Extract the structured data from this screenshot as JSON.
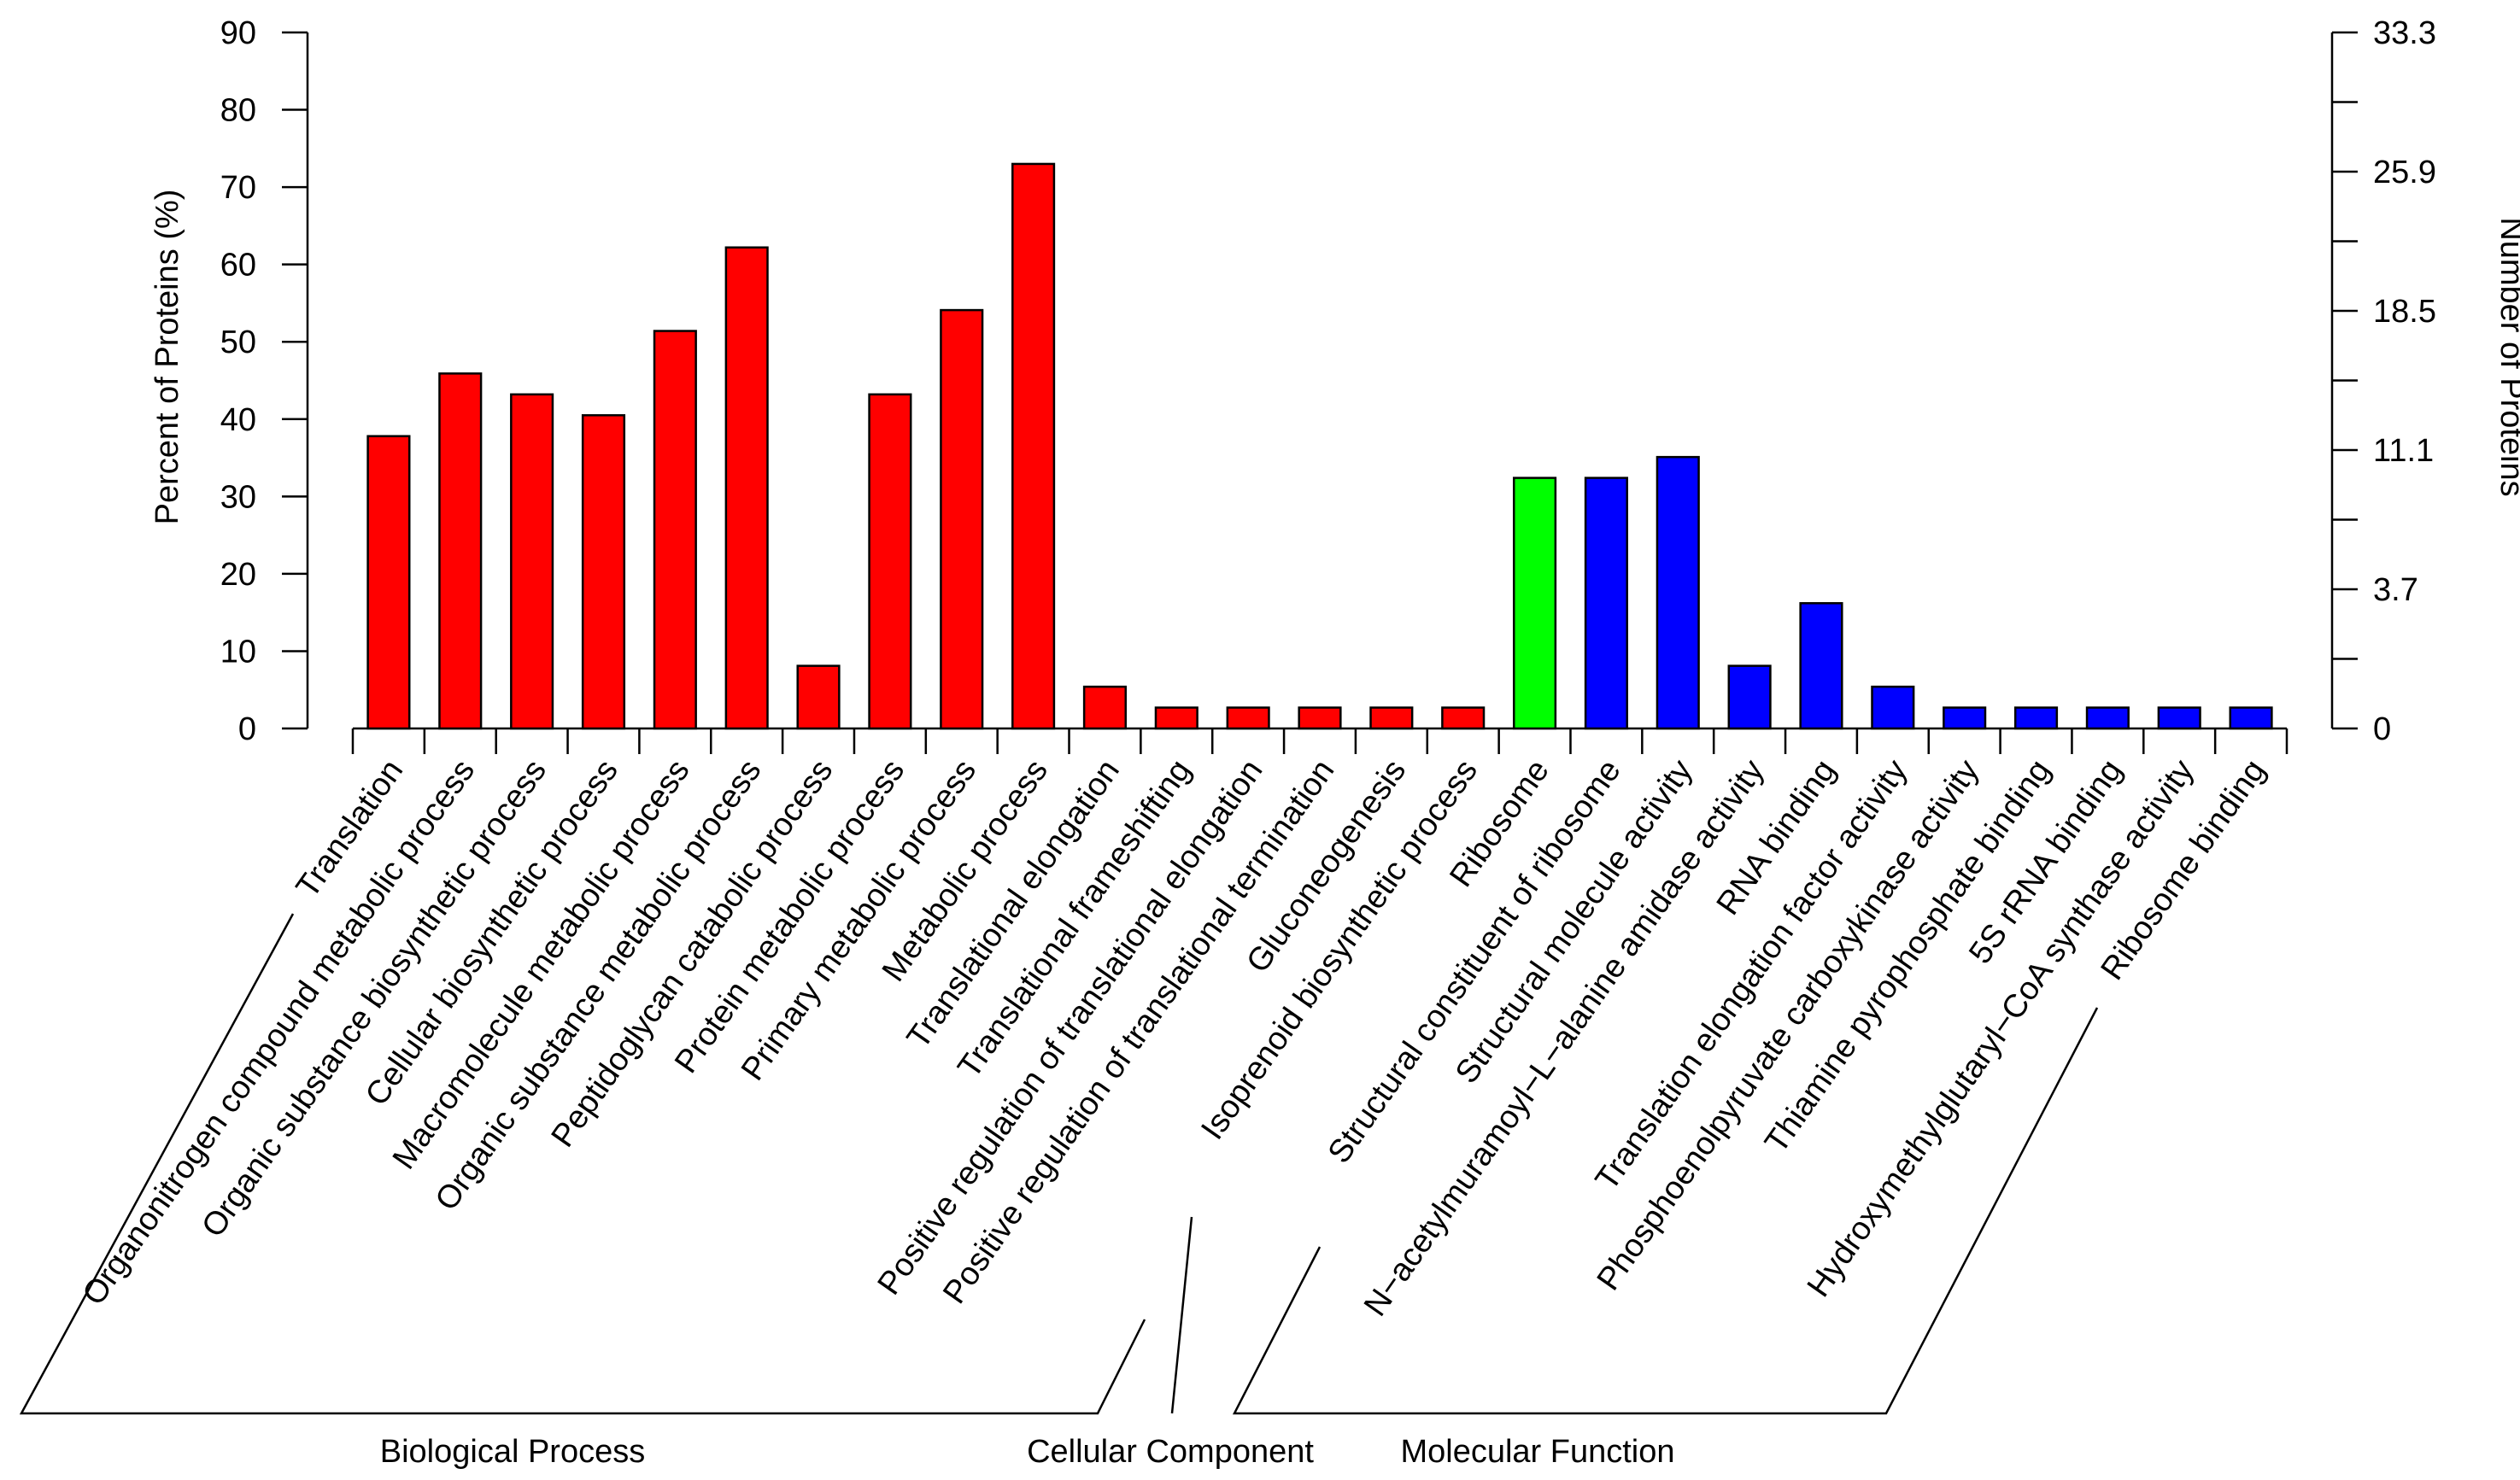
{
  "chart_data": {
    "type": "bar",
    "title": "",
    "ylabel": "Percent of Proteins (%)",
    "y2label": "Number of Proteins",
    "ylim": [
      0,
      90
    ],
    "yticks": [
      0,
      10,
      20,
      30,
      40,
      50,
      60,
      70,
      80,
      90
    ],
    "y2ticks": [
      "0",
      "",
      "3.7",
      "",
      "11.1",
      "",
      "18.5",
      "",
      "25.9",
      "",
      "33.3"
    ],
    "grid": false,
    "legend": "none",
    "categories": [
      "Translation",
      "Organonitrogen compound metabolic process",
      "Organic substance biosynthetic process",
      "Cellular biosynthetic process",
      "Macromolecule metabolic process",
      "Organic substance metabolic process",
      "Peptidoglycan catabolic process",
      "Protein metabolic process",
      "Primary metabolic process",
      "Metabolic process",
      "Translational elongation",
      "Translational frameshifting",
      "Positive regulation of translational elongation",
      "Positive regulation of translational termination",
      "Gluconeogenesis",
      "Isoprenoid biosynthetic process",
      "Ribosome",
      "Structural constituent of ribosome",
      "Structural molecule activity",
      "N−acetylmuramoyl−L−alanine amidase activity",
      "RNA binding",
      "Translation elongation factor activity",
      "Phosphoenolpyruvate carboxykinase activity",
      "Thiamine pyrophosphate binding",
      "5S rRNA binding",
      "Hydroxymethylglutaryl−CoA synthase activity",
      "Ribosome binding"
    ],
    "values": [
      37.8,
      45.9,
      43.2,
      40.5,
      51.4,
      62.2,
      8.1,
      43.2,
      54.1,
      73.0,
      5.4,
      2.7,
      2.7,
      2.7,
      2.7,
      2.7,
      32.4,
      32.4,
      35.1,
      8.1,
      16.2,
      5.4,
      2.7,
      2.7,
      2.7,
      2.7,
      2.7
    ],
    "groups": [
      {
        "name": "Biological Process",
        "start": 0,
        "end": 15,
        "color": "#ff0000"
      },
      {
        "name": "Cellular Component",
        "start": 16,
        "end": 16,
        "color": "#00ff00"
      },
      {
        "name": "Molecular Function",
        "start": 17,
        "end": 26,
        "color": "#0000ff"
      }
    ]
  }
}
